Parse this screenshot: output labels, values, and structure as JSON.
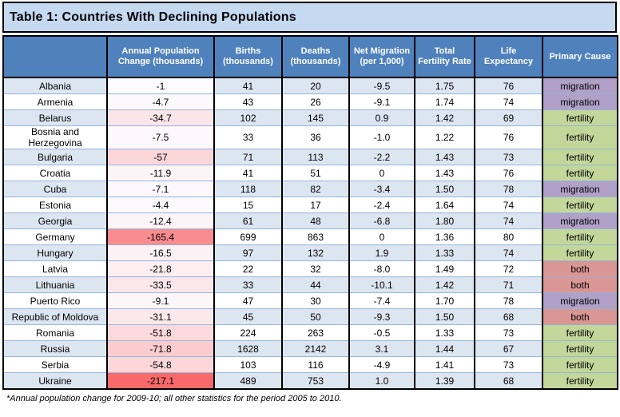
{
  "window": {
    "title": "Table 1: Countries With Declining Populations"
  },
  "table": {
    "columns": [
      "",
      "Annual Population Change (thousands)",
      "Births (thousands)",
      "Deaths (thousands)",
      "Net Migration (per 1,000)",
      "Total Fertility Rate",
      "Life Expectancy",
      "Primary Cause"
    ],
    "rows": [
      {
        "country": "Albania",
        "change": "-1",
        "births": "41",
        "deaths": "20",
        "net_migration": "-9.5",
        "fertility_rate": "1.75",
        "life_expectancy": "76",
        "primary_cause": "migration"
      },
      {
        "country": "Armenia",
        "change": "-4.7",
        "births": "43",
        "deaths": "26",
        "net_migration": "-9.1",
        "fertility_rate": "1.74",
        "life_expectancy": "74",
        "primary_cause": "migration"
      },
      {
        "country": "Belarus",
        "change": "-34.7",
        "births": "102",
        "deaths": "145",
        "net_migration": "0.9",
        "fertility_rate": "1.42",
        "life_expectancy": "69",
        "primary_cause": "fertility"
      },
      {
        "country": "Bosnia and Herzegovina",
        "change": "-7.5",
        "births": "33",
        "deaths": "36",
        "net_migration": "-1.0",
        "fertility_rate": "1.22",
        "life_expectancy": "76",
        "primary_cause": "fertility"
      },
      {
        "country": "Bulgaria",
        "change": "-57",
        "births": "71",
        "deaths": "113",
        "net_migration": "-2.2",
        "fertility_rate": "1.43",
        "life_expectancy": "73",
        "primary_cause": "fertility"
      },
      {
        "country": "Croatia",
        "change": "-11.9",
        "births": "41",
        "deaths": "51",
        "net_migration": "0",
        "fertility_rate": "1.43",
        "life_expectancy": "76",
        "primary_cause": "fertility"
      },
      {
        "country": "Cuba",
        "change": "-7.1",
        "births": "118",
        "deaths": "82",
        "net_migration": "-3.4",
        "fertility_rate": "1.50",
        "life_expectancy": "78",
        "primary_cause": "migration"
      },
      {
        "country": "Estonia",
        "change": "-4.4",
        "births": "15",
        "deaths": "17",
        "net_migration": "-2.4",
        "fertility_rate": "1.64",
        "life_expectancy": "74",
        "primary_cause": "fertility"
      },
      {
        "country": "Georgia",
        "change": "-12.4",
        "births": "61",
        "deaths": "48",
        "net_migration": "-6.8",
        "fertility_rate": "1.80",
        "life_expectancy": "74",
        "primary_cause": "migration"
      },
      {
        "country": "Germany",
        "change": "-165.4",
        "births": "699",
        "deaths": "863",
        "net_migration": "0",
        "fertility_rate": "1.36",
        "life_expectancy": "80",
        "primary_cause": "fertility"
      },
      {
        "country": "Hungary",
        "change": "-16.5",
        "births": "97",
        "deaths": "132",
        "net_migration": "1.9",
        "fertility_rate": "1.33",
        "life_expectancy": "74",
        "primary_cause": "fertility"
      },
      {
        "country": "Latvia",
        "change": "-21.8",
        "births": "22",
        "deaths": "32",
        "net_migration": "-8.0",
        "fertility_rate": "1.49",
        "life_expectancy": "72",
        "primary_cause": "both"
      },
      {
        "country": "Lithuania",
        "change": "-33.5",
        "births": "33",
        "deaths": "44",
        "net_migration": "-10.1",
        "fertility_rate": "1.42",
        "life_expectancy": "71",
        "primary_cause": "both"
      },
      {
        "country": "Puerto Rico",
        "change": "-9.1",
        "births": "47",
        "deaths": "30",
        "net_migration": "-7.4",
        "fertility_rate": "1.70",
        "life_expectancy": "78",
        "primary_cause": "migration"
      },
      {
        "country": "Republic of Moldova",
        "change": "-31.1",
        "births": "45",
        "deaths": "50",
        "net_migration": "-9.3",
        "fertility_rate": "1.50",
        "life_expectancy": "68",
        "primary_cause": "both"
      },
      {
        "country": "Romania",
        "change": "-51.8",
        "births": "224",
        "deaths": "263",
        "net_migration": "-0.5",
        "fertility_rate": "1.33",
        "life_expectancy": "73",
        "primary_cause": "fertility"
      },
      {
        "country": "Russia",
        "change": "-71.8",
        "births": "1628",
        "deaths": "2142",
        "net_migration": "3.1",
        "fertility_rate": "1.44",
        "life_expectancy": "67",
        "primary_cause": "fertility"
      },
      {
        "country": "Serbia",
        "change": "-54.8",
        "births": "103",
        "deaths": "116",
        "net_migration": "-4.9",
        "fertility_rate": "1.41",
        "life_expectancy": "73",
        "primary_cause": "fertility"
      },
      {
        "country": "Ukraine",
        "change": "-217.1",
        "births": "489",
        "deaths": "753",
        "net_migration": "1.0",
        "fertility_rate": "1.39",
        "life_expectancy": "68",
        "primary_cause": "fertility"
      }
    ],
    "footnote": "*Annual population change for 2009-10; all other statistics for the period 2005 to 2010."
  },
  "colors": {
    "title_bg": "#c5d9f1",
    "header_bg": "#4f81bd",
    "header_text": "#ffffff",
    "row_stripe": "#dce6f1",
    "grid_line": "#95b3d7",
    "outer_border": "#000000",
    "change_scale": {
      "low": "#fcfcff",
      "high": "#f8696b",
      "domain": [
        1,
        217.1
      ]
    },
    "cause": {
      "migration": "#b1a0c7",
      "fertility": "#c4d79b",
      "both": "#da9694"
    }
  }
}
